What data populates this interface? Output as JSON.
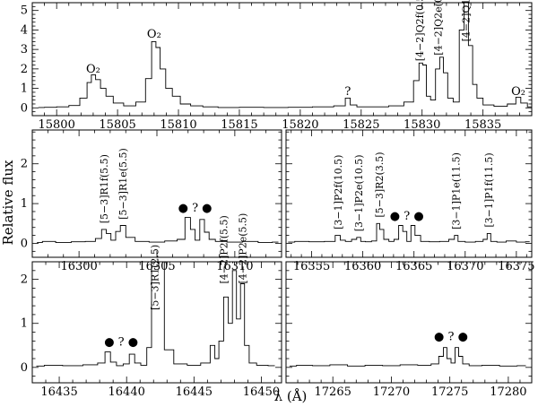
{
  "chart_data": {
    "type": "line",
    "ylabel": "Relative flux",
    "xlabel": "λ (Å)",
    "panels": [
      {
        "id": "p1",
        "xlim": [
          15798,
          15839
        ],
        "ylim": [
          -0.4,
          5.4
        ],
        "x_ticks": [
          15800,
          15805,
          15810,
          15815,
          15820,
          15825,
          15830,
          15835
        ],
        "y_ticks": [
          0,
          1,
          2,
          3,
          4,
          5
        ],
        "show_y_labels": true,
        "series": [
          {
            "x": [
              15798.5,
              15799.5,
              15800.5,
              15801.5,
              15802.3,
              15802.7,
              15803,
              15803.4,
              15803.8,
              15804.3,
              15805,
              15806,
              15807,
              15807.6,
              15808,
              15808.3,
              15808.7,
              15809.2,
              15809.8,
              15810.5,
              15811.5,
              15812.5,
              15814,
              15816,
              15818,
              15820,
              15822,
              15823.5,
              15823.9,
              15824.3,
              15825,
              15826.5,
              15828,
              15829,
              15829.6,
              15829.9,
              15830.2,
              15830.5,
              15830.9,
              15831.3,
              15831.6,
              15831.9,
              15832.3,
              15832.8,
              15833.3,
              15833.6,
              15834,
              15834.3,
              15834.7,
              15835.3,
              15836.5,
              15837.5,
              15837.9,
              15838.3,
              15839
            ],
            "y": [
              0.02,
              0.03,
              0.05,
              0.12,
              0.5,
              1.3,
              1.7,
              1.45,
              1.0,
              0.6,
              0.25,
              0.1,
              0.3,
              1.5,
              3.4,
              3.1,
              2.0,
              1.0,
              0.6,
              0.2,
              0.1,
              0.05,
              0.02,
              0.03,
              0.02,
              0.03,
              0.05,
              0.1,
              0.5,
              0.15,
              0.05,
              0.05,
              0.1,
              0.3,
              1.4,
              2.3,
              2.2,
              0.6,
              0.4,
              2.0,
              2.6,
              1.8,
              0.5,
              0.3,
              4.0,
              5.4,
              3.2,
              1.2,
              0.5,
              0.15,
              0.08,
              0.2,
              0.55,
              0.25,
              0.05
            ]
          }
        ],
        "annotations": [
          {
            "text": "O₂",
            "x": 15803,
            "y": 1.8
          },
          {
            "text": "O₂",
            "x": 15808,
            "y": 3.6
          },
          {
            "text": "?",
            "x": 15823.9,
            "y": 0.65
          },
          {
            "text": "[4−2]Q2f(0.5)",
            "x": 15829.8,
            "y": 2.4
          },
          {
            "text": "[4−2]Q2e(0.5)",
            "x": 15831.3,
            "y": 2.7
          },
          {
            "text": "[4−2]Q1(1.5)",
            "x": 15833.6,
            "y": 3.4
          },
          {
            "text": "O₂",
            "x": 15837.9,
            "y": 0.65
          }
        ]
      },
      {
        "id": "p2",
        "xlim": [
          16297,
          16313
        ],
        "ylim": [
          -0.35,
          2.85
        ],
        "x_ticks": [
          16300,
          16305,
          16310
        ],
        "y_ticks": [
          0,
          1,
          2
        ],
        "show_y_labels": true,
        "series": [
          {
            "x": [
              16297.3,
              16298,
              16299,
              16300,
              16300.8,
              16301.3,
              16301.6,
              16301.9,
              16302.2,
              16302.5,
              16302.8,
              16303.2,
              16304,
              16305,
              16306,
              16306.6,
              16307,
              16307.3,
              16307.6,
              16307.9,
              16308.2,
              16308.5,
              16309,
              16310,
              16311,
              16312,
              16312.8
            ],
            "y": [
              0.02,
              0.05,
              0.02,
              0.04,
              0.05,
              0.12,
              0.35,
              0.25,
              0.08,
              0.3,
              0.45,
              0.15,
              0.05,
              0.03,
              0.06,
              0.1,
              0.65,
              0.35,
              0.08,
              0.6,
              0.28,
              0.1,
              0.05,
              0.03,
              0.05,
              0.02,
              0.03
            ]
          }
        ],
        "annotations": [
          {
            "text": "[5−3]R1f(5.5)",
            "x": 16301.6,
            "y": 0.5
          },
          {
            "text": "[5−3]R1e(5.5)",
            "x": 16302.8,
            "y": 0.6
          },
          {
            "text": "● ? ●",
            "x": 16307.45,
            "y": 0.8
          }
        ]
      },
      {
        "id": "p3",
        "xlim": [
          16352.5,
          16376.5
        ],
        "ylim": [
          -0.35,
          2.85
        ],
        "x_ticks": [
          16355,
          16360,
          16365,
          16370,
          16375
        ],
        "y_ticks": [
          0,
          1,
          2
        ],
        "show_y_labels": false,
        "series": [
          {
            "x": [
              16352.7,
              16354,
              16355.5,
              16357,
              16357.6,
              16358,
              16358.6,
              16359.2,
              16359.6,
              16360,
              16360.5,
              16361.2,
              16361.5,
              16361.8,
              16362.3,
              16362.8,
              16363.3,
              16363.7,
              16364.1,
              16364.5,
              16364.9,
              16365.3,
              16366,
              16367,
              16368,
              16368.8,
              16369.1,
              16369.5,
              16370.5,
              16371.5,
              16372,
              16372.3,
              16372.7,
              16373.5,
              16374.5,
              16375.5,
              16376.3
            ],
            "y": [
              0.03,
              0.05,
              0.04,
              0.05,
              0.2,
              0.08,
              0.05,
              0.1,
              0.15,
              0.05,
              0.04,
              0.06,
              0.5,
              0.35,
              0.1,
              0.05,
              0.1,
              0.45,
              0.3,
              0.05,
              0.45,
              0.2,
              0.05,
              0.04,
              0.05,
              0.1,
              0.2,
              0.05,
              0.03,
              0.05,
              0.1,
              0.25,
              0.05,
              0.03,
              0.06,
              0.03,
              0.04
            ]
          }
        ],
        "annotations": [
          {
            "text": "[3−1]P2f(10.5)",
            "x": 16357.6,
            "y": 0.35
          },
          {
            "text": "[3−1]P2e(10.5)",
            "x": 16359.6,
            "y": 0.3
          },
          {
            "text": "[5−3]R2(3.5)",
            "x": 16361.6,
            "y": 0.65
          },
          {
            "text": "● ? ●",
            "x": 16364.3,
            "y": 0.6
          },
          {
            "text": "[3−1]P1e(11.5)",
            "x": 16369.1,
            "y": 0.35
          },
          {
            "text": "[3−1]P1f(11.5)",
            "x": 16372.3,
            "y": 0.4
          }
        ]
      },
      {
        "id": "p4",
        "xlim": [
          16433,
          16451.5
        ],
        "ylim": [
          -0.35,
          2.4
        ],
        "x_ticks": [
          16435,
          16440,
          16445,
          16450
        ],
        "y_ticks": [
          0,
          1,
          2
        ],
        "show_y_labels": true,
        "series": [
          {
            "x": [
              16433.3,
              16434.5,
              16436,
              16437.5,
              16438.2,
              16438.6,
              16439,
              16439.5,
              16440,
              16440.4,
              16440.8,
              16441.3,
              16441.7,
              16442,
              16442.3,
              16442.6,
              16443,
              16444,
              16445,
              16446,
              16446.4,
              16446.7,
              16447,
              16447.4,
              16447.7,
              16448,
              16448.3,
              16448.6,
              16448.9,
              16449.3,
              16450,
              16451
            ],
            "y": [
              0.03,
              0.05,
              0.04,
              0.06,
              0.1,
              0.35,
              0.12,
              0.04,
              0.08,
              0.3,
              0.1,
              0.05,
              0.45,
              2.4,
              2.4,
              2.4,
              0.4,
              0.08,
              0.05,
              0.1,
              0.5,
              0.2,
              0.6,
              1.6,
              1.0,
              2.2,
              1.1,
              1.9,
              0.5,
              0.1,
              0.05,
              0.04
            ]
          }
        ],
        "annotations": [
          {
            "text": "● ? ●",
            "x": 16439.6,
            "y": 0.5
          },
          {
            "text": "[5−3]R1(2.5)",
            "x": 16442.1,
            "y": 1.3
          },
          {
            "text": "[4−2]P2f(5.5)",
            "x": 16447.2,
            "y": 1.9
          },
          {
            "text": "[4−2]P2e(5.5)",
            "x": 16448.6,
            "y": 1.9
          }
        ]
      },
      {
        "id": "p5",
        "xlim": [
          17261,
          17282
        ],
        "ylim": [
          -0.35,
          2.4
        ],
        "x_ticks": [
          17265,
          17270,
          17275,
          17280
        ],
        "y_ticks": [
          0,
          1,
          2
        ],
        "show_y_labels": false,
        "series": [
          {
            "x": [
              17261.3,
              17262.5,
              17264,
              17265.5,
              17267,
              17268.5,
              17270,
              17271.5,
              17273,
              17273.8,
              17274.3,
              17274.6,
              17274.9,
              17275.3,
              17275.6,
              17275.9,
              17276.3,
              17277,
              17278.5,
              17280,
              17281.5
            ],
            "y": [
              0.03,
              0.05,
              0.04,
              0.06,
              0.03,
              0.05,
              0.04,
              0.06,
              0.05,
              0.08,
              0.25,
              0.45,
              0.2,
              0.1,
              0.45,
              0.25,
              0.08,
              0.04,
              0.05,
              0.03,
              0.04
            ]
          }
        ],
        "annotations": [
          {
            "text": "● ? ●",
            "x": 17275.1,
            "y": 0.62
          }
        ]
      }
    ]
  }
}
